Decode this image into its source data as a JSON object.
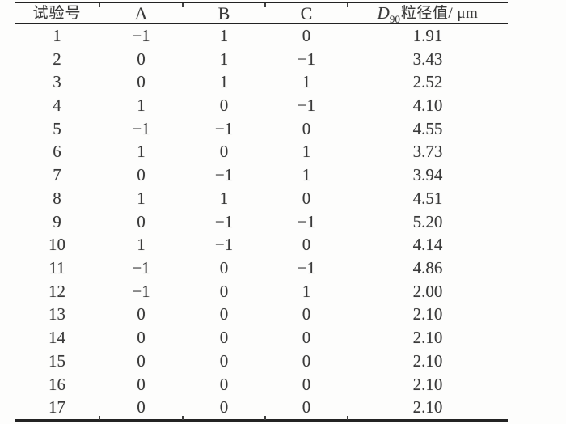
{
  "page": {
    "background": "#fdfdfc"
  },
  "colors": {
    "text": "#3a3a3a",
    "rule": "#232323",
    "tick": "#3f3f3f"
  },
  "table": {
    "column_keys": [
      "run",
      "a",
      "b",
      "c",
      "d90"
    ],
    "headers": {
      "run": "试验号",
      "a": "A",
      "b": "B",
      "c": "C",
      "d90_prefix": "D",
      "d90_subscript": "90",
      "d90_suffix": "粒径值/ μm"
    },
    "rows": [
      [
        "1",
        "−1",
        "1",
        "0",
        "1.91"
      ],
      [
        "2",
        "0",
        "1",
        "−1",
        "3.43"
      ],
      [
        "3",
        "0",
        "1",
        "1",
        "2.52"
      ],
      [
        "4",
        "1",
        "0",
        "−1",
        "4.10"
      ],
      [
        "5",
        "−1",
        "−1",
        "0",
        "4.55"
      ],
      [
        "6",
        "1",
        "0",
        "1",
        "3.73"
      ],
      [
        "7",
        "0",
        "−1",
        "1",
        "3.94"
      ],
      [
        "8",
        "1",
        "1",
        "0",
        "4.51"
      ],
      [
        "9",
        "0",
        "−1",
        "−1",
        "5.20"
      ],
      [
        "10",
        "1",
        "−1",
        "0",
        "4.14"
      ],
      [
        "11",
        "−1",
        "0",
        "−1",
        "4.86"
      ],
      [
        "12",
        "−1",
        "0",
        "1",
        "2.00"
      ],
      [
        "13",
        "0",
        "0",
        "0",
        "2.10"
      ],
      [
        "14",
        "0",
        "0",
        "0",
        "2.10"
      ],
      [
        "15",
        "0",
        "0",
        "0",
        "2.10"
      ],
      [
        "16",
        "0",
        "0",
        "0",
        "2.10"
      ],
      [
        "17",
        "0",
        "0",
        "0",
        "2.10"
      ]
    ]
  }
}
